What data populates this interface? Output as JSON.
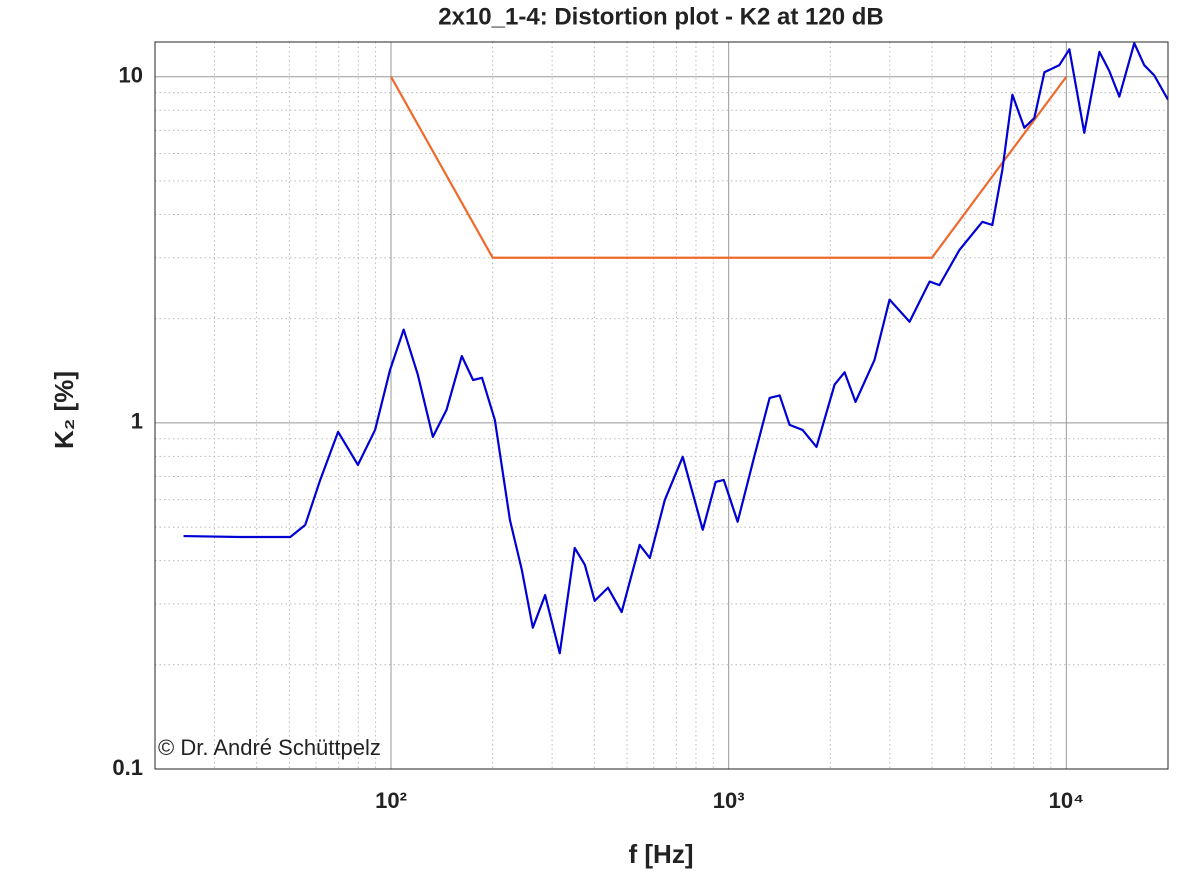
{
  "chart_data": {
    "type": "line",
    "title": "2x10_1-4: Distortion plot - K2 at 120 dB",
    "xlabel": "f [Hz]",
    "ylabel": "K₂ [%]",
    "annotation": "© Dr. André Schüttpelz",
    "xscale": "log",
    "yscale": "log",
    "grid": true,
    "xlim": [
      20,
      20000
    ],
    "ylim": [
      0.1,
      12.6
    ],
    "xticks": [
      {
        "value": 100,
        "label": "10²"
      },
      {
        "value": 1000,
        "label": "10³"
      },
      {
        "value": 10000,
        "label": "10⁴"
      }
    ],
    "yticks": [
      0.1,
      1,
      10
    ],
    "series": [
      {
        "color": "#ee6a2c",
        "x": [
          100,
          200,
          4000,
          10000
        ],
        "values": [
          10,
          3,
          3,
          10
        ]
      },
      {
        "color": "#0000d4",
        "x": [
          24.3,
          35.7,
          50.3,
          55.7,
          61.7,
          69.7,
          79.8,
          89.7,
          99.3,
          109,
          120,
          133,
          146,
          162,
          175,
          186,
          203,
          225,
          244,
          263,
          286,
          316,
          350,
          375,
          401,
          439,
          482,
          545,
          584,
          647,
          731,
          838,
          915,
          967,
          1063,
          1194,
          1322,
          1416,
          1515,
          1655,
          1820,
          2059,
          2204,
          2375,
          2703,
          2995,
          3433,
          3936,
          4209,
          4824,
          5641,
          6037,
          6465,
          6922,
          7508,
          8039,
          8609,
          9531,
          10208,
          11300,
          12530,
          13400,
          14350,
          15890,
          17010,
          18200,
          20000
        ],
        "values": [
          0.471,
          0.468,
          0.468,
          0.507,
          0.684,
          0.942,
          0.756,
          0.954,
          1.42,
          1.86,
          1.38,
          0.911,
          1.09,
          1.56,
          1.33,
          1.35,
          1.02,
          0.524,
          0.376,
          0.256,
          0.318,
          0.216,
          0.435,
          0.389,
          0.306,
          0.334,
          0.284,
          0.444,
          0.407,
          0.599,
          0.798,
          0.491,
          0.675,
          0.684,
          0.518,
          0.808,
          1.18,
          1.2,
          0.987,
          0.954,
          0.852,
          1.29,
          1.4,
          1.15,
          1.52,
          2.27,
          1.96,
          2.56,
          2.5,
          3.16,
          3.81,
          3.73,
          5.39,
          8.87,
          7.12,
          7.6,
          10.3,
          10.8,
          12.0,
          6.89,
          11.8,
          10.4,
          8.76,
          12.5,
          10.8,
          10.1,
          8.58
        ]
      }
    ]
  }
}
